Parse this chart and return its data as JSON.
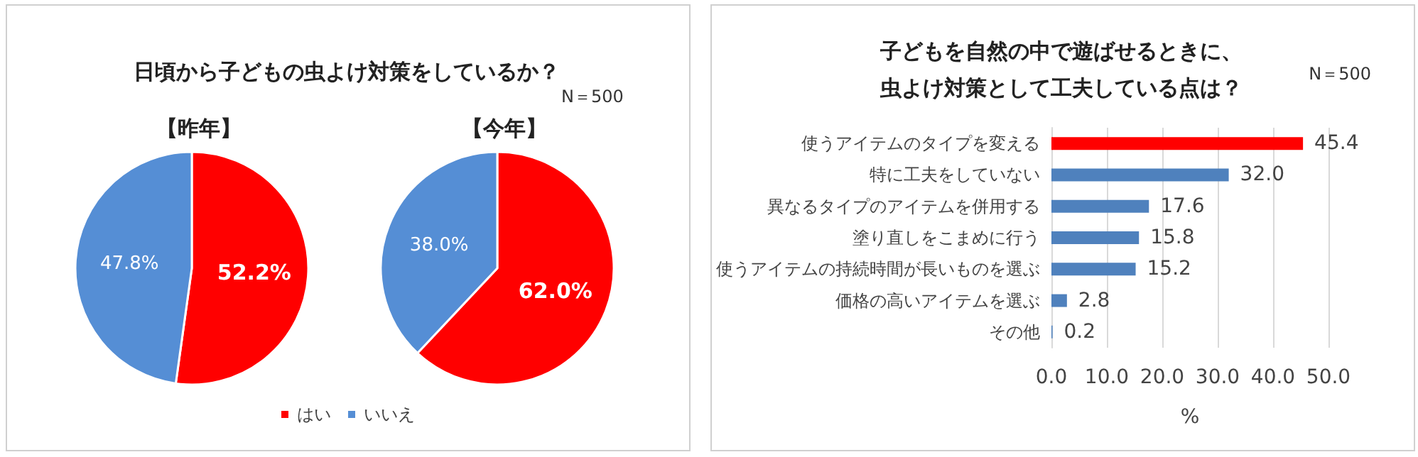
{
  "chart_data": [
    {
      "type": "pie",
      "title": "日頃から子どもの虫よけ対策をしているか？",
      "subtitle": "【昨年】",
      "categories": [
        "はい",
        "いいえ"
      ],
      "values": [
        52.2,
        47.8
      ],
      "colors": [
        "#ff0000",
        "#558ed5"
      ],
      "value_labels": [
        "52.2%",
        "47.8%"
      ],
      "legend": "bottom"
    },
    {
      "type": "pie",
      "subtitle": "【今年】",
      "categories": [
        null,
        null
      ],
      "values": [
        62.0,
        38.0
      ],
      "colors": [
        "#ff0000",
        "#558ed5"
      ],
      "value_labels": [
        "62.0%",
        "38.0%"
      ],
      "annotations": [
        "N＝500"
      ]
    },
    {
      "type": "bar",
      "orientation": "horizontal",
      "title": "子どもを自然の中で遊ばせるときに、虫よけ対策として工夫している点は？",
      "annotations": [
        "N＝500"
      ],
      "xlabel": "%",
      "categories": [
        "使うアイテムのタイプを変える",
        "特に工夫をしていない",
        "異なるタイプのアイテムを併用する",
        "塗り直しをこまめに行う",
        "使うアイテムの持続時間が長いものを選ぶ",
        "価格の高いアイテムを選ぶ",
        "その他"
      ],
      "values": [
        45.4,
        32.0,
        17.6,
        15.8,
        15.2,
        2.8,
        0.2
      ],
      "colors": [
        "#ff0000",
        "#4f81bd",
        "#4f81bd",
        "#4f81bd",
        "#4f81bd",
        "#4f81bd",
        "#4f81bd"
      ],
      "value_labels": [
        "45.4",
        "32.0",
        "17.6",
        "15.8",
        "15.2",
        "2.8",
        "0.2"
      ],
      "xlim": [
        0,
        50
      ],
      "xticks": [
        {
          "value": 0,
          "label": "0.0"
        },
        {
          "value": 10,
          "label": "10.0"
        },
        {
          "value": 20,
          "label": "20.0"
        },
        {
          "value": 30,
          "label": "30.0"
        },
        {
          "value": 40,
          "label": "40.0"
        },
        {
          "value": 50,
          "label": "50.0"
        }
      ],
      "grid": "x"
    }
  ]
}
